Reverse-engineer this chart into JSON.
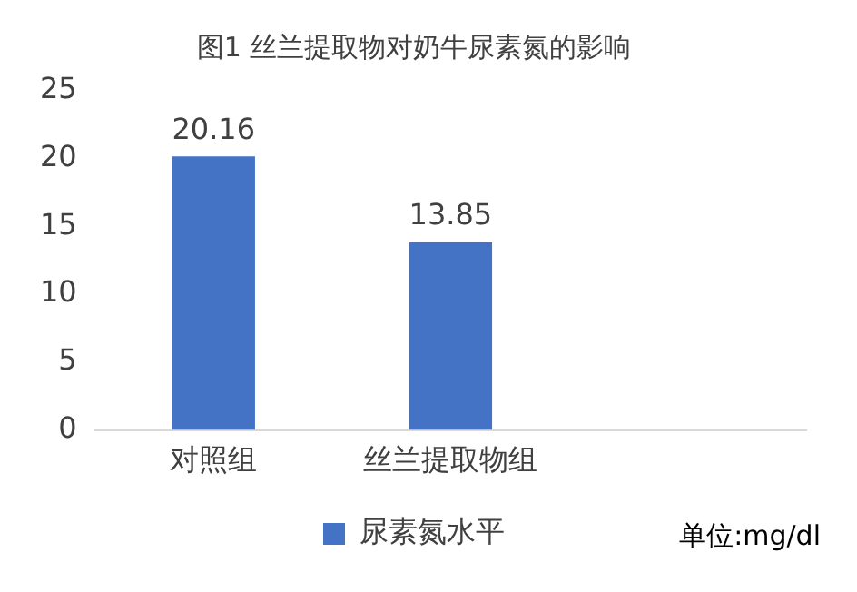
{
  "chart_data": {
    "type": "bar",
    "title": "图1 丝兰提取物对奶牛尿素氮的影响",
    "categories": [
      "对照组",
      "丝兰提取物组",
      null
    ],
    "series": [
      {
        "name": "尿素氮水平",
        "color": "#4472c4",
        "values": [
          20.16,
          13.85,
          null
        ]
      }
    ],
    "ylim": [
      0,
      25
    ],
    "yticks": [
      0,
      5,
      10,
      15,
      20,
      25
    ],
    "grid": false,
    "legend": "bottom",
    "data_labels": true,
    "annotations": [
      "单位:mg/dl"
    ]
  }
}
